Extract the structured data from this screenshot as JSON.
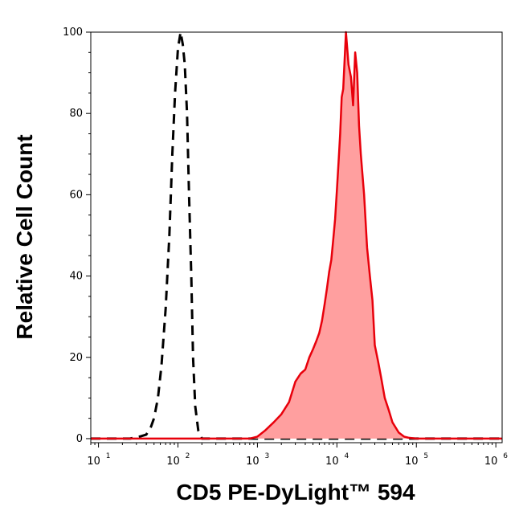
{
  "chart_data": {
    "type": "area",
    "title": "",
    "xlabel": "CD5 PE-DyLight™ 594",
    "ylabel": "Relative Cell Count",
    "xscale": "log",
    "xlim": [
      8,
      1200000
    ],
    "ylim": [
      -1,
      100
    ],
    "grid": false,
    "x_ticks": [
      {
        "base": "10",
        "exp": "1",
        "value": 10
      },
      {
        "base": "10",
        "exp": "2",
        "value": 100
      },
      {
        "base": "10",
        "exp": "3",
        "value": 1000
      },
      {
        "base": "10",
        "exp": "4",
        "value": 10000
      },
      {
        "base": "10",
        "exp": "5",
        "value": 100000
      },
      {
        "base": "10",
        "exp": "6",
        "value": 1000000
      }
    ],
    "y_ticks": [
      0,
      20,
      40,
      60,
      80,
      100
    ],
    "series": [
      {
        "style": "dashed-line",
        "color": "#000000",
        "x": [
          8,
          15,
          25,
          33,
          40,
          46,
          50,
          56,
          62,
          70,
          78,
          85,
          92,
          100,
          108,
          115,
          122,
          130,
          138,
          147,
          155,
          165,
          180,
          200,
          300,
          1000,
          5000,
          10000,
          50000,
          1200000
        ],
        "y": [
          0,
          0,
          0,
          0.5,
          1,
          3,
          5,
          10,
          18,
          32,
          50,
          70,
          85,
          96,
          100,
          97,
          92,
          80,
          60,
          40,
          20,
          8,
          2,
          0,
          0,
          0,
          0,
          0,
          0,
          0
        ]
      },
      {
        "style": "filled",
        "color": "#e8000b",
        "fill": "#ff9f9f",
        "x": [
          8,
          100,
          800,
          1000,
          1250,
          1600,
          2000,
          2500,
          3000,
          3500,
          4000,
          4500,
          5000,
          5500,
          6000,
          6500,
          7000,
          7500,
          8000,
          8500,
          9000,
          9500,
          10000,
          10500,
          11000,
          11500,
          12000,
          12500,
          13000,
          14000,
          15000,
          16000,
          17000,
          18000,
          19000,
          20000,
          22000,
          24000,
          26000,
          28000,
          30000,
          33000,
          36000,
          40000,
          45000,
          50000,
          60000,
          70000,
          80000,
          100000,
          1200000
        ],
        "y": [
          0,
          0,
          0,
          0.5,
          2,
          4,
          6,
          9,
          14,
          16,
          17,
          20,
          22,
          24,
          26,
          29,
          33,
          37,
          41,
          44,
          49,
          54,
          61,
          68,
          75,
          84,
          86,
          93,
          100,
          92,
          89,
          82,
          95,
          90,
          77,
          70,
          60,
          47,
          40,
          34,
          23,
          19,
          15,
          10,
          7,
          4,
          1.5,
          0.5,
          0.2,
          0,
          0
        ]
      }
    ]
  }
}
